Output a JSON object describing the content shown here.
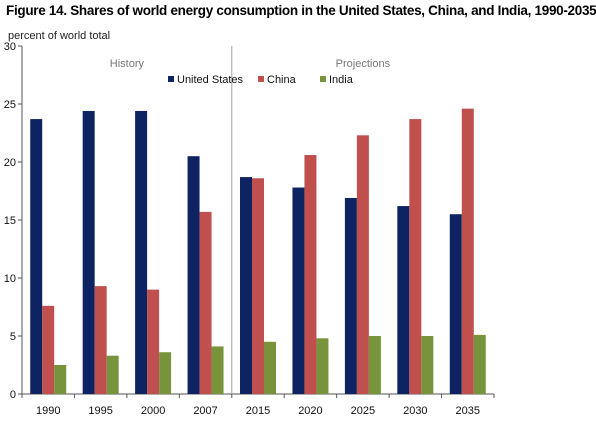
{
  "title": "Figure 14. Shares of world energy consumption in the United States, China, and India, 1990-2035",
  "chart_data": {
    "type": "bar",
    "title": "Figure 14. Shares of world energy consumption in the United States, China, and India, 1990-2035",
    "ylabel": "percent of world total",
    "xlabel": "",
    "ylim": [
      0,
      30
    ],
    "yticks": [
      0,
      5,
      10,
      15,
      20,
      25,
      30
    ],
    "categories": [
      "1990",
      "1995",
      "2000",
      "2007",
      "2015",
      "2020",
      "2025",
      "2030",
      "2035"
    ],
    "series": [
      {
        "name": "United States",
        "color": "#0e2462",
        "values": [
          23.7,
          24.4,
          24.4,
          20.5,
          18.7,
          17.8,
          16.9,
          16.2,
          15.5
        ]
      },
      {
        "name": "China",
        "color": "#c0504d",
        "values": [
          7.6,
          9.3,
          9.0,
          15.7,
          18.6,
          20.6,
          22.3,
          23.7,
          24.6
        ]
      },
      {
        "name": "India",
        "color": "#77933c",
        "values": [
          2.5,
          3.3,
          3.6,
          4.1,
          4.5,
          4.8,
          5.0,
          5.0,
          5.1
        ]
      }
    ],
    "sections": [
      {
        "label": "History",
        "from": "1990",
        "to": "2007"
      },
      {
        "label": "Projections",
        "from": "2015",
        "to": "2035"
      }
    ],
    "legend": "top-right",
    "grid": false
  }
}
